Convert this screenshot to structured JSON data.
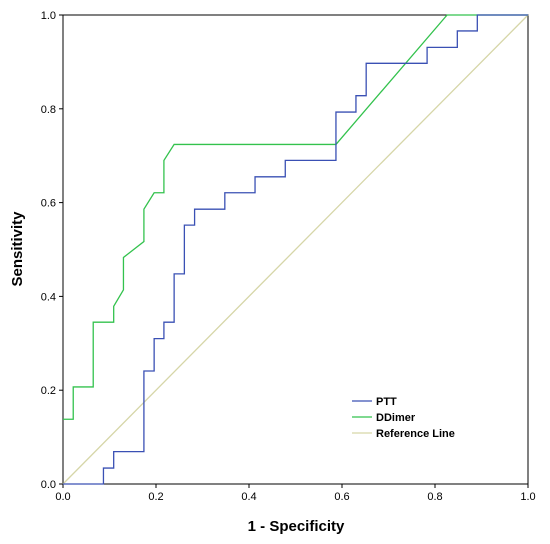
{
  "chart_data": {
    "type": "line",
    "title": "",
    "xlabel": "1 - Specificity",
    "ylabel": "Sensitivity",
    "xlim": [
      0,
      1
    ],
    "ylim": [
      0,
      1
    ],
    "xticks": [
      "0.0",
      "0.2",
      "0.4",
      "0.6",
      "0.8",
      "1.0"
    ],
    "yticks": [
      "0.0",
      "0.2",
      "0.4",
      "0.6",
      "0.8",
      "1.0"
    ],
    "grid": false,
    "legend_position": "bottom-right",
    "series": [
      {
        "name": "PTT",
        "color": "#3a50b4",
        "x": [
          0,
          0.087,
          0.087,
          0.109,
          0.109,
          0.174,
          0.174,
          0.196,
          0.196,
          0.217,
          0.217,
          0.239,
          0.239,
          0.261,
          0.261,
          0.283,
          0.283,
          0.304,
          0.304,
          0.348,
          0.348,
          0.391,
          0.391,
          0.413,
          0.413,
          0.457,
          0.457,
          0.478,
          0.478,
          0.587,
          0.587,
          0.63,
          0.63,
          0.652,
          0.652,
          0.783,
          0.783,
          0.826,
          0.826,
          0.848,
          0.848,
          0.891,
          0.891,
          1.0
        ],
        "y": [
          0,
          0,
          0.034,
          0.034,
          0.069,
          0.069,
          0.241,
          0.241,
          0.31,
          0.31,
          0.345,
          0.345,
          0.448,
          0.448,
          0.552,
          0.552,
          0.586,
          0.586,
          0.586,
          0.586,
          0.621,
          0.621,
          0.621,
          0.621,
          0.655,
          0.655,
          0.655,
          0.655,
          0.69,
          0.69,
          0.793,
          0.793,
          0.828,
          0.828,
          0.897,
          0.897,
          0.931,
          0.931,
          0.931,
          0.931,
          0.966,
          0.966,
          1.0,
          1.0
        ]
      },
      {
        "name": "DDimer",
        "color": "#33c24d",
        "x": [
          0,
          0.022,
          0.022,
          0.065,
          0.065,
          0.109,
          0.109,
          0.13,
          0.13,
          0.152,
          0.152,
          0.174,
          0.174,
          0.196,
          0.196,
          0.217,
          0.217,
          0.239,
          0.239,
          0.587,
          0.826,
          1.0
        ],
        "y": [
          0.138,
          0.138,
          0.207,
          0.207,
          0.345,
          0.345,
          0.379,
          0.414,
          0.483,
          0.5,
          0.5,
          0.517,
          0.586,
          0.621,
          0.621,
          0.621,
          0.69,
          0.724,
          0.724,
          0.724,
          1.0,
          1.0
        ]
      },
      {
        "name": "Reference Line",
        "color": "#d6d6a8",
        "x": [
          0,
          1
        ],
        "y": [
          0,
          1
        ]
      }
    ]
  }
}
